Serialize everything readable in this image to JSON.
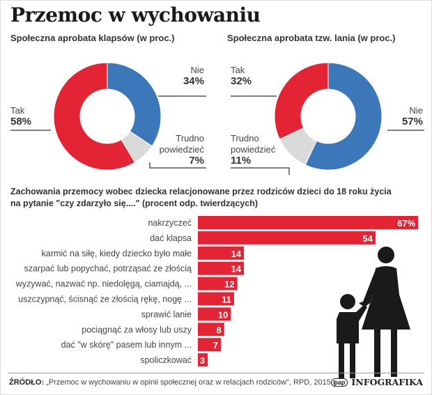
{
  "title": "Przemoc w wychowaniu",
  "colors": {
    "red": "#e32434",
    "blue": "#3c77ba",
    "gray": "#dadada",
    "silhouette": "#1a1a1a"
  },
  "chart_data": [
    {
      "type": "pie",
      "title": "Społeczna aprobata klapsów (w proc.)",
      "slices": [
        {
          "label": "Nie",
          "value": 34,
          "display": "34%",
          "color": "#3c77ba"
        },
        {
          "label": "Trudno powiedzieć",
          "value": 7,
          "display": "7%",
          "color": "#dadada"
        },
        {
          "label": "Tak",
          "value": 58,
          "display": "58%",
          "color": "#e32434"
        }
      ]
    },
    {
      "type": "pie",
      "title": "Społeczna aprobata tzw. lania (w proc.)",
      "slices": [
        {
          "label": "Nie",
          "value": 57,
          "display": "57%",
          "color": "#3c77ba"
        },
        {
          "label": "Trudno powiedzieć",
          "value": 11,
          "display": "11%",
          "color": "#dadada"
        },
        {
          "label": "Tak",
          "value": 32,
          "display": "32%",
          "color": "#e32434"
        }
      ]
    },
    {
      "type": "bar",
      "orientation": "horizontal",
      "title": "Zachowania przemocy wobec dziecka relacjonowane przez rodziców dzieci do 18 roku życia",
      "subtitle": "na pytanie \"czy zdarzyło się....\" (procent odp. twierdzących)",
      "categories": [
        "nakrzyczeć",
        "dać klapsa",
        "karmić na siłę, kiedy dziecko było małe",
        "szarpać lub popychać, potrząsać ze złością",
        "wyzywać, nazwać np. niedolęgą, ciamajdą, ...",
        "uszczypnąć, ścisnąć ze złością rękę, nogę ...",
        "sprawić lanie",
        "pociągnąć za włosy lub uszy",
        "dać \"w skórę\" pasem lub innym ...",
        "spoliczkować"
      ],
      "values": [
        67,
        54,
        14,
        14,
        12,
        11,
        10,
        8,
        7,
        3
      ],
      "value_labels": [
        "67%",
        "54",
        "14",
        "14",
        "12",
        "11",
        "10",
        "8",
        "7",
        "3"
      ],
      "color": "#e32434"
    }
  ],
  "footer": {
    "source_label": "ŹRÓDŁO:",
    "source_text": "„Przemoc w wychowaniu w opinii społecznej oraz w relacjach rodziców\", RPD, 2015 r.",
    "brand_logo": "pap",
    "brand": "INFOGRAFIKA"
  }
}
